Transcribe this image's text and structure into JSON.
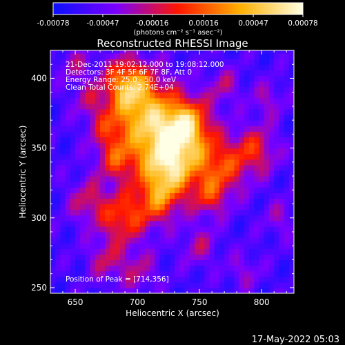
{
  "chart_data": {
    "type": "heatmap",
    "title": "Reconstructed RHESSI Image",
    "xlabel": "Heliocentric X (arcsec)",
    "ylabel": "Heliocentric Y (arcsec)",
    "xlim": [
      630,
      826
    ],
    "ylim": [
      246,
      420
    ],
    "xticks": [
      650,
      700,
      750,
      800
    ],
    "yticks": [
      250,
      300,
      350,
      400
    ],
    "colorbar": {
      "range": [
        -0.00078,
        0.00078
      ],
      "ticks": [
        "-0.00078",
        "-0.00047",
        "-0.00016",
        "0.00016",
        "0.00047",
        "0.00078"
      ],
      "tick_values": [
        -0.00078,
        -0.00047,
        -0.00016,
        0.00016,
        0.00047,
        0.00078
      ],
      "units": "(photons cm⁻² s⁻¹ asec⁻²)",
      "colors": [
        "#0a10ff",
        "#7a00ff",
        "#ff1600",
        "#ffb000",
        "#ffffe6"
      ]
    },
    "annotations": [
      "21-Dec-2011 19:02:12.000 to 19:08:12.000",
      "Detectors: 3F 4F 5F 6F 7F 8F, Att 0",
      "Energy Range: 25.0 - 50.0 keV",
      "Clean     Total Counts: 2.74E+04"
    ],
    "peak_label": "Position of Peak = [714,356]",
    "peak": [
      714,
      356
    ],
    "grid": false
  },
  "footer": {
    "date": "17-May-2022 05:03"
  }
}
